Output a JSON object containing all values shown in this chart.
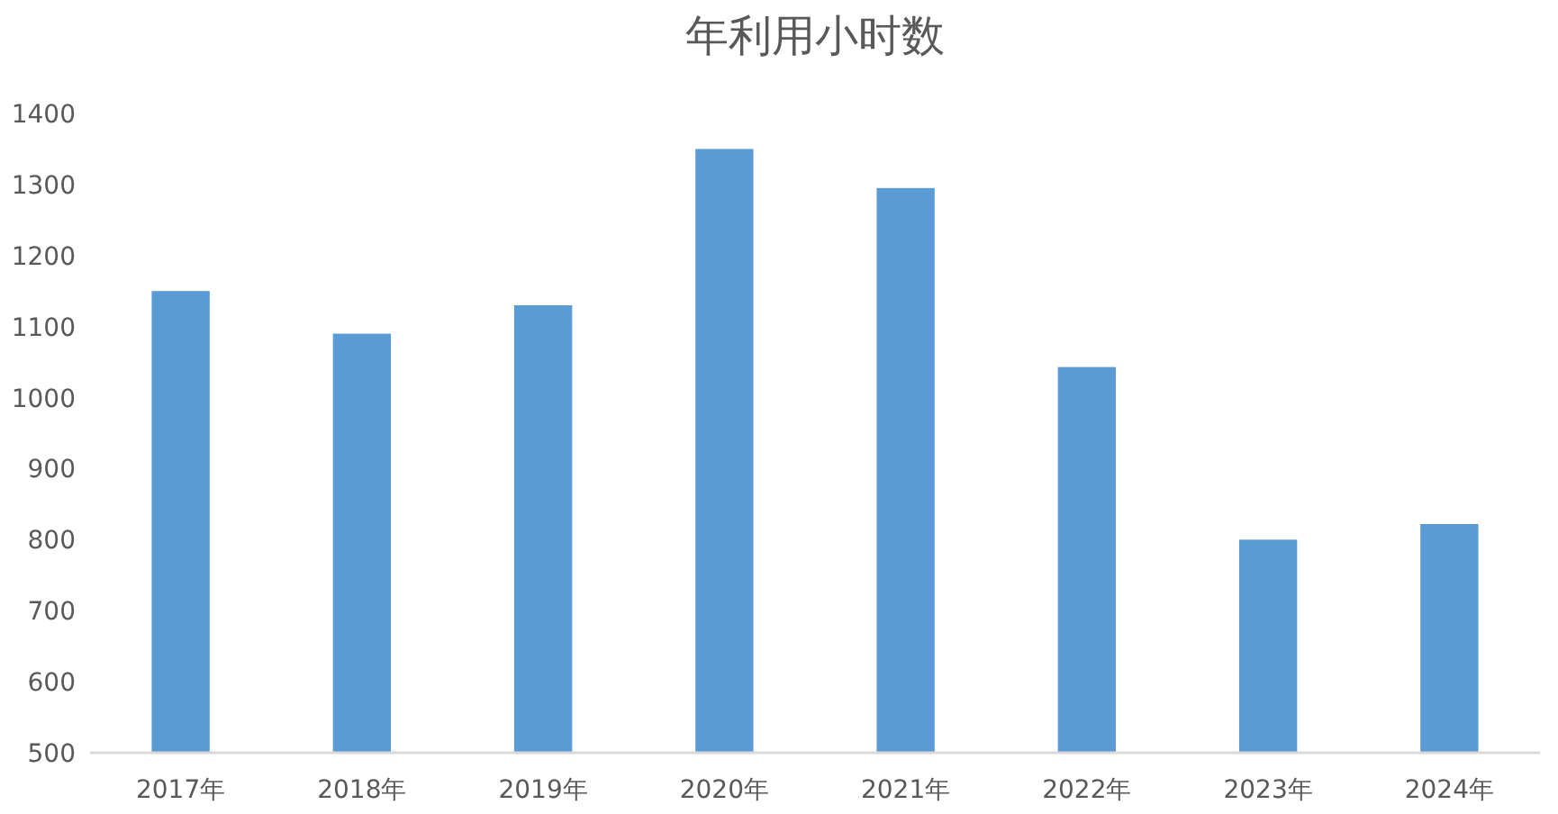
{
  "chart_data": {
    "type": "bar",
    "title": "年利用小时数",
    "categories": [
      "2017年",
      "2018年",
      "2019年",
      "2020年",
      "2021年",
      "2022年",
      "2023年",
      "2024年"
    ],
    "values": [
      1150,
      1090,
      1130,
      1350,
      1295,
      1043,
      800,
      822
    ],
    "color": "#5b9bd5",
    "ylim": [
      500,
      1400
    ],
    "yticks": [
      500,
      600,
      700,
      800,
      900,
      1000,
      1100,
      1200,
      1300,
      1400
    ]
  }
}
